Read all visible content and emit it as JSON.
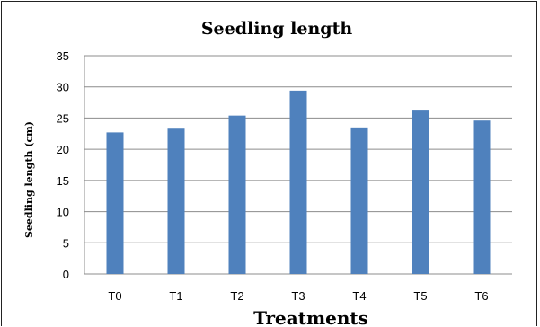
{
  "chart_data": {
    "type": "bar",
    "title": "Seedling length",
    "xlabel": "Treatments",
    "ylabel": "Seedling length (cm)",
    "categories": [
      "T0",
      "T1",
      "T2",
      "T3",
      "T4",
      "T5",
      "T6"
    ],
    "values": [
      22.7,
      23.3,
      25.4,
      29.4,
      23.5,
      26.2,
      24.6
    ],
    "ylim": [
      0,
      35
    ],
    "yticks": [
      "0",
      "5",
      "10",
      "15",
      "20",
      "25",
      "30",
      "35"
    ],
    "ytick_values": [
      0,
      5,
      10,
      15,
      20,
      25,
      30,
      35
    ],
    "grid": true,
    "legend": "none",
    "bar_color": "#4F81BD",
    "grid_color": "#8C8C8C"
  }
}
